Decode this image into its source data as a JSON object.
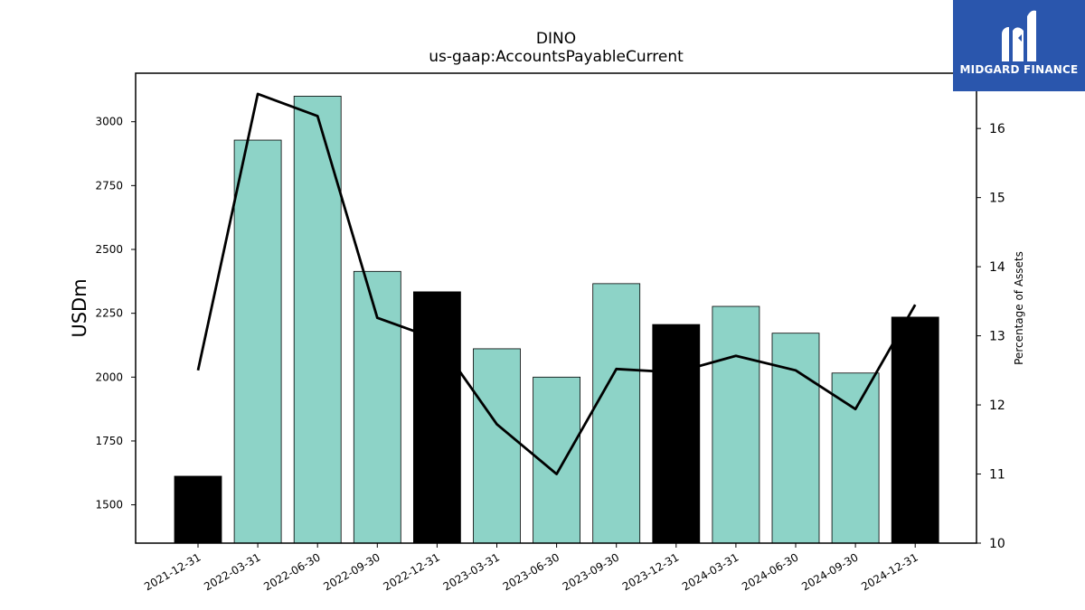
{
  "chart_data": {
    "type": "bar",
    "title": "DINO",
    "subtitle": "us-gaap:AccountsPayableCurrent",
    "ylabel": "USDm",
    "y2label": "Percentage of Assets",
    "categories": [
      "2021-12-31",
      "2022-03-31",
      "2022-06-30",
      "2022-09-30",
      "2022-12-31",
      "2023-03-31",
      "2023-06-30",
      "2023-09-30",
      "2023-12-31",
      "2024-03-31",
      "2024-06-30",
      "2024-09-30",
      "2024-12-31"
    ],
    "series": [
      {
        "type": "bar",
        "axis": "left",
        "values": [
          1612,
          2928,
          3100,
          2414,
          2334,
          2111,
          2000,
          2366,
          2206,
          2277,
          2172,
          2016,
          2235
        ],
        "highlight": [
          true,
          false,
          false,
          false,
          true,
          false,
          false,
          false,
          true,
          false,
          false,
          false,
          true
        ]
      },
      {
        "type": "line",
        "axis": "right",
        "values": [
          12.5,
          16.5,
          16.18,
          13.26,
          12.95,
          11.72,
          11.0,
          12.52,
          12.47,
          12.71,
          12.5,
          11.94,
          13.45
        ]
      }
    ],
    "ylim": [
      1350,
      3190
    ],
    "y2lim": [
      10,
      16.8
    ],
    "yticks": [
      1500,
      1750,
      2000,
      2250,
      2500,
      2750,
      3000
    ],
    "y2ticks": [
      10,
      11,
      12,
      13,
      14,
      15,
      16
    ],
    "colors": {
      "bar": "#8dd3c7",
      "bar_highlight": "#000000",
      "line": "#000000"
    },
    "grid": false
  },
  "logo": {
    "text": "MIDGARD FINANCE",
    "color": "#2a56ad"
  }
}
